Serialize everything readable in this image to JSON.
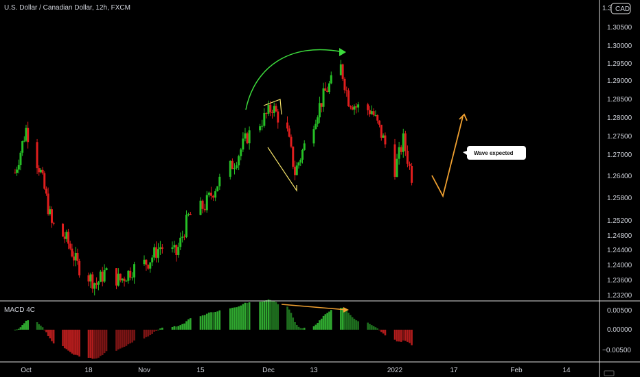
{
  "chart_data": {
    "type": "candlestick",
    "symbol_title": "U.S. Dollar / Canadian Dollar, 12h, FXCM",
    "currency_badge": "CAD",
    "indicator_label": "MACD 4C",
    "annotation": "Wave expected",
    "x_ticks": [
      "Oct",
      "18",
      "Nov",
      "15",
      "Dec",
      "13",
      "2022",
      "17",
      "Feb",
      "14"
    ],
    "y_ticks": [
      "1.30500",
      "1.30000",
      "1.29500",
      "1.29000",
      "1.28500",
      "1.28000",
      "1.27500",
      "1.27000",
      "1.26400",
      "1.25800",
      "1.25200",
      "1.24800",
      "1.24400",
      "1.24000",
      "1.23600",
      "1.23200"
    ],
    "y_top_partial": "1.3",
    "macd_ticks": [
      "0.00500",
      "0.00000",
      "−0.00500"
    ],
    "ylim": [
      1.232,
      1.31
    ],
    "macd_ylim": [
      -0.0075,
      0.0075
    ],
    "colors": {
      "up": "#26c026",
      "down": "#e01e1e",
      "macd_pos": "#2fa82f",
      "macd_neg": "#b01c1c",
      "yellow": "#f5e36a",
      "green_arrow": "#3ddc3d",
      "orange": "#f0a030"
    },
    "key_closes": [
      [
        "2021-09-28",
        1.265
      ],
      [
        "2021-10-01",
        1.277
      ],
      [
        "2021-10-05",
        1.265
      ],
      [
        "2021-10-08",
        1.251
      ],
      [
        "2021-10-12",
        1.247
      ],
      [
        "2021-10-15",
        1.24
      ],
      [
        "2021-10-20",
        1.235
      ],
      [
        "2021-10-22",
        1.238
      ],
      [
        "2021-10-26",
        1.236
      ],
      [
        "2021-10-29",
        1.239
      ],
      [
        "2021-11-02",
        1.241
      ],
      [
        "2021-11-05",
        1.245
      ],
      [
        "2021-11-09",
        1.243
      ],
      [
        "2021-11-12",
        1.253
      ],
      [
        "2021-11-16",
        1.256
      ],
      [
        "2021-11-19",
        1.262
      ],
      [
        "2021-11-23",
        1.268
      ],
      [
        "2021-11-26",
        1.275
      ],
      [
        "2021-11-30",
        1.28
      ],
      [
        "2021-12-02",
        1.283
      ],
      [
        "2021-12-06",
        1.276
      ],
      [
        "2021-12-08",
        1.265
      ],
      [
        "2021-12-10",
        1.271
      ],
      [
        "2021-12-14",
        1.282
      ],
      [
        "2021-12-16",
        1.287
      ],
      [
        "2021-12-20",
        1.294
      ],
      [
        "2021-12-22",
        1.285
      ],
      [
        "2021-12-24",
        1.283
      ],
      [
        "2021-12-28",
        1.282
      ],
      [
        "2021-12-30",
        1.277
      ],
      [
        "2022-01-03",
        1.266
      ],
      [
        "2022-01-05",
        1.274
      ],
      [
        "2022-01-07",
        1.264
      ]
    ]
  }
}
